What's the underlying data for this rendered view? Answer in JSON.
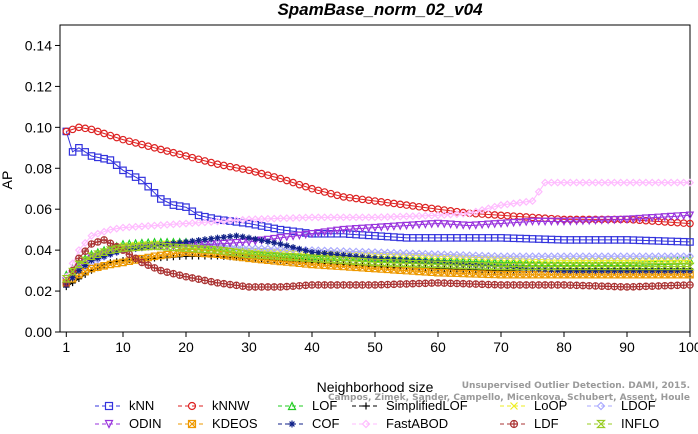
{
  "chart_data": {
    "type": "line",
    "title": "SpamBase_norm_02_v04",
    "xlabel": "Neighborhood size",
    "ylabel": "AP",
    "xlim": [
      0,
      100
    ],
    "ylim": [
      0,
      0.15
    ],
    "x_ticks": [
      1,
      10,
      20,
      30,
      40,
      50,
      60,
      70,
      80,
      90,
      100
    ],
    "y_ticks": [
      0.0,
      0.02,
      0.04,
      0.06,
      0.08,
      0.1,
      0.12,
      0.14
    ],
    "y_tick_labels": [
      "0.00",
      "0.02",
      "0.04",
      "0.06",
      "0.08",
      "0.10",
      "0.12",
      "0.14"
    ],
    "grid": false,
    "legend_position": "bottom",
    "credit_lines": [
      "Campos, Zimek, Sander, Campello, Micenkova, Schubert, Assent, Houle",
      "Unsupervised Outlier Detection. DAMI, 2015."
    ],
    "series": [
      {
        "name": "kNN",
        "color": "#3333dd",
        "marker": "square",
        "points": [
          [
            1,
            0.098
          ],
          [
            2,
            0.088
          ],
          [
            3,
            0.09
          ],
          [
            5,
            0.086
          ],
          [
            8,
            0.084
          ],
          [
            10,
            0.079
          ],
          [
            13,
            0.074
          ],
          [
            16,
            0.065
          ],
          [
            18,
            0.062
          ],
          [
            20,
            0.061
          ],
          [
            22,
            0.057
          ],
          [
            25,
            0.055
          ],
          [
            30,
            0.053
          ],
          [
            35,
            0.05
          ],
          [
            40,
            0.048
          ],
          [
            45,
            0.048
          ],
          [
            50,
            0.047
          ],
          [
            55,
            0.046
          ],
          [
            60,
            0.046
          ],
          [
            70,
            0.046
          ],
          [
            80,
            0.045
          ],
          [
            90,
            0.045
          ],
          [
            100,
            0.044
          ]
        ]
      },
      {
        "name": "kNNW",
        "color": "#dd2222",
        "marker": "circle",
        "points": [
          [
            1,
            0.098
          ],
          [
            2,
            0.099
          ],
          [
            3,
            0.1
          ],
          [
            5,
            0.099
          ],
          [
            8,
            0.096
          ],
          [
            10,
            0.094
          ],
          [
            15,
            0.09
          ],
          [
            20,
            0.086
          ],
          [
            25,
            0.082
          ],
          [
            30,
            0.079
          ],
          [
            35,
            0.075
          ],
          [
            40,
            0.07
          ],
          [
            45,
            0.066
          ],
          [
            50,
            0.064
          ],
          [
            55,
            0.062
          ],
          [
            60,
            0.06
          ],
          [
            65,
            0.058
          ],
          [
            70,
            0.057
          ],
          [
            75,
            0.056
          ],
          [
            80,
            0.055
          ],
          [
            90,
            0.055
          ],
          [
            100,
            0.053
          ]
        ]
      },
      {
        "name": "LOF",
        "color": "#22cc22",
        "marker": "triangle",
        "points": [
          [
            1,
            0.028
          ],
          [
            3,
            0.034
          ],
          [
            5,
            0.038
          ],
          [
            8,
            0.041
          ],
          [
            10,
            0.043
          ],
          [
            15,
            0.044
          ],
          [
            20,
            0.044
          ],
          [
            25,
            0.042
          ],
          [
            30,
            0.039
          ],
          [
            40,
            0.037
          ],
          [
            50,
            0.036
          ],
          [
            60,
            0.035
          ],
          [
            70,
            0.034
          ],
          [
            80,
            0.034
          ],
          [
            90,
            0.034
          ],
          [
            100,
            0.035
          ]
        ]
      },
      {
        "name": "SimplifiedLOF",
        "color": "#000000",
        "marker": "plus",
        "points": [
          [
            1,
            0.022
          ],
          [
            3,
            0.026
          ],
          [
            5,
            0.03
          ],
          [
            8,
            0.034
          ],
          [
            10,
            0.035
          ],
          [
            15,
            0.036
          ],
          [
            20,
            0.037
          ],
          [
            25,
            0.037
          ],
          [
            30,
            0.036
          ],
          [
            40,
            0.034
          ],
          [
            50,
            0.032
          ],
          [
            60,
            0.031
          ],
          [
            70,
            0.03
          ],
          [
            80,
            0.031
          ],
          [
            90,
            0.031
          ],
          [
            100,
            0.031
          ]
        ]
      },
      {
        "name": "LoOP",
        "color": "#eeee22",
        "marker": "x",
        "points": [
          [
            1,
            0.025
          ],
          [
            3,
            0.031
          ],
          [
            5,
            0.036
          ],
          [
            8,
            0.04
          ],
          [
            10,
            0.042
          ],
          [
            15,
            0.043
          ],
          [
            20,
            0.043
          ],
          [
            25,
            0.041
          ],
          [
            30,
            0.04
          ],
          [
            40,
            0.039
          ],
          [
            50,
            0.038
          ],
          [
            60,
            0.037
          ],
          [
            70,
            0.036
          ],
          [
            80,
            0.035
          ],
          [
            90,
            0.035
          ],
          [
            100,
            0.035
          ]
        ]
      },
      {
        "name": "LDOF",
        "color": "#aaaaff",
        "marker": "diamond",
        "points": [
          [
            1,
            0.024
          ],
          [
            3,
            0.03
          ],
          [
            5,
            0.034
          ],
          [
            8,
            0.038
          ],
          [
            10,
            0.04
          ],
          [
            15,
            0.042
          ],
          [
            20,
            0.043
          ],
          [
            25,
            0.042
          ],
          [
            30,
            0.041
          ],
          [
            40,
            0.04
          ],
          [
            50,
            0.039
          ],
          [
            60,
            0.038
          ],
          [
            70,
            0.037
          ],
          [
            80,
            0.037
          ],
          [
            90,
            0.037
          ],
          [
            100,
            0.037
          ]
        ]
      },
      {
        "name": "ODIN",
        "color": "#9933dd",
        "marker": "triangle-down",
        "points": [
          [
            1,
            0.025
          ],
          [
            3,
            0.032
          ],
          [
            5,
            0.036
          ],
          [
            8,
            0.039
          ],
          [
            10,
            0.041
          ],
          [
            15,
            0.042
          ],
          [
            20,
            0.042
          ],
          [
            25,
            0.043
          ],
          [
            30,
            0.044
          ],
          [
            35,
            0.046
          ],
          [
            40,
            0.048
          ],
          [
            45,
            0.05
          ],
          [
            50,
            0.051
          ],
          [
            55,
            0.052
          ],
          [
            60,
            0.053
          ],
          [
            65,
            0.052
          ],
          [
            70,
            0.053
          ],
          [
            75,
            0.054
          ],
          [
            80,
            0.054
          ],
          [
            90,
            0.055
          ],
          [
            100,
            0.057
          ]
        ]
      },
      {
        "name": "KDEOS",
        "color": "#ee9900",
        "marker": "square-x",
        "points": [
          [
            1,
            0.024
          ],
          [
            3,
            0.028
          ],
          [
            5,
            0.031
          ],
          [
            8,
            0.033
          ],
          [
            10,
            0.034
          ],
          [
            15,
            0.037
          ],
          [
            20,
            0.039
          ],
          [
            25,
            0.038
          ],
          [
            30,
            0.036
          ],
          [
            40,
            0.033
          ],
          [
            50,
            0.031
          ],
          [
            60,
            0.029
          ],
          [
            70,
            0.028
          ],
          [
            80,
            0.028
          ],
          [
            90,
            0.028
          ],
          [
            100,
            0.028
          ]
        ]
      },
      {
        "name": "COF",
        "color": "#112288",
        "marker": "star",
        "points": [
          [
            1,
            0.023
          ],
          [
            3,
            0.03
          ],
          [
            5,
            0.035
          ],
          [
            8,
            0.038
          ],
          [
            10,
            0.04
          ],
          [
            15,
            0.042
          ],
          [
            20,
            0.044
          ],
          [
            25,
            0.046
          ],
          [
            28,
            0.047
          ],
          [
            30,
            0.046
          ],
          [
            35,
            0.043
          ],
          [
            40,
            0.039
          ],
          [
            50,
            0.036
          ],
          [
            60,
            0.034
          ],
          [
            70,
            0.032
          ],
          [
            80,
            0.03
          ],
          [
            90,
            0.03
          ],
          [
            100,
            0.03
          ]
        ]
      },
      {
        "name": "FastABOD",
        "color": "#ffbbff",
        "marker": "diamond",
        "points": [
          [
            1,
            0.027
          ],
          [
            3,
            0.04
          ],
          [
            5,
            0.047
          ],
          [
            8,
            0.05
          ],
          [
            10,
            0.051
          ],
          [
            15,
            0.052
          ],
          [
            20,
            0.053
          ],
          [
            25,
            0.054
          ],
          [
            30,
            0.055
          ],
          [
            40,
            0.056
          ],
          [
            50,
            0.056
          ],
          [
            60,
            0.057
          ],
          [
            65,
            0.058
          ],
          [
            70,
            0.062
          ],
          [
            75,
            0.064
          ],
          [
            77,
            0.073
          ],
          [
            80,
            0.073
          ],
          [
            90,
            0.073
          ],
          [
            100,
            0.073
          ]
        ]
      },
      {
        "name": "LDF",
        "color": "#aa3333",
        "marker": "circle-plus",
        "points": [
          [
            1,
            0.024
          ],
          [
            3,
            0.036
          ],
          [
            5,
            0.043
          ],
          [
            7,
            0.045
          ],
          [
            10,
            0.04
          ],
          [
            13,
            0.034
          ],
          [
            16,
            0.03
          ],
          [
            20,
            0.027
          ],
          [
            25,
            0.024
          ],
          [
            30,
            0.022
          ],
          [
            35,
            0.022
          ],
          [
            40,
            0.023
          ],
          [
            50,
            0.023
          ],
          [
            60,
            0.024
          ],
          [
            70,
            0.023
          ],
          [
            80,
            0.023
          ],
          [
            90,
            0.022
          ],
          [
            100,
            0.023
          ]
        ]
      },
      {
        "name": "INFLO",
        "color": "#99cc22",
        "marker": "hourglass",
        "points": [
          [
            1,
            0.026
          ],
          [
            3,
            0.033
          ],
          [
            5,
            0.037
          ],
          [
            8,
            0.04
          ],
          [
            10,
            0.041
          ],
          [
            15,
            0.042
          ],
          [
            20,
            0.041
          ],
          [
            25,
            0.04
          ],
          [
            30,
            0.038
          ],
          [
            40,
            0.036
          ],
          [
            50,
            0.034
          ],
          [
            60,
            0.033
          ],
          [
            70,
            0.032
          ],
          [
            80,
            0.032
          ],
          [
            90,
            0.032
          ],
          [
            100,
            0.032
          ]
        ]
      }
    ],
    "legend_rows": [
      [
        "kNN",
        "kNNW",
        "LOF",
        "SimplifiedLOF",
        "LoOP",
        "LDOF"
      ],
      [
        "ODIN",
        "KDEOS",
        "COF",
        "FastABOD",
        "LDF",
        "INFLO"
      ]
    ]
  }
}
